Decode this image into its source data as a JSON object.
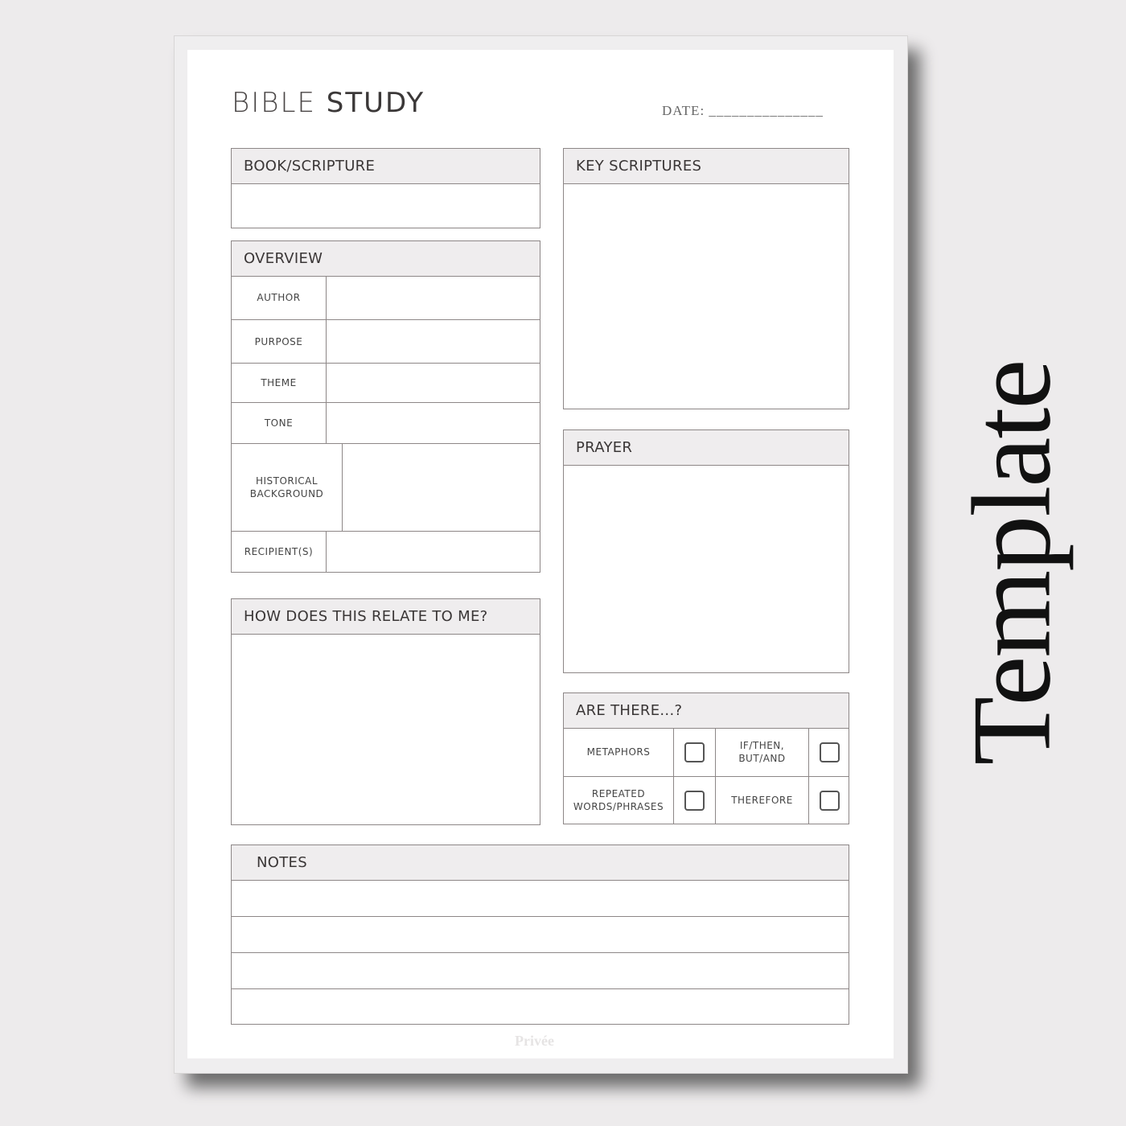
{
  "header": {
    "title_light": "BIBLE",
    "title_bold": "STUDY",
    "date_label": "DATE: _______________"
  },
  "book_scripture": {
    "title": "BOOK/SCRIPTURE"
  },
  "overview": {
    "title": "OVERVIEW",
    "rows": [
      "AUTHOR",
      "PURPOSE",
      "THEME",
      "TONE",
      "HISTORICAL BACKGROUND",
      "RECIPIENT(S)"
    ]
  },
  "relate": {
    "title": "HOW DOES THIS RELATE TO ME?"
  },
  "key_scriptures": {
    "title": "KEY SCRIPTURES"
  },
  "prayer": {
    "title": "PRAYER"
  },
  "are_there": {
    "title": "ARE THERE...?",
    "items": [
      {
        "label": "METAPHORS",
        "checked": false
      },
      {
        "label": "IF/THEN, BUT/AND",
        "checked": false
      },
      {
        "label": "REPEATED WORDS/PHRASES",
        "checked": false
      },
      {
        "label": "THEREFORE",
        "checked": false
      }
    ]
  },
  "notes": {
    "title": "NOTES",
    "line_count": 4
  },
  "watermark": "Privée",
  "side_label": "Template",
  "colors": {
    "background": "#edebec",
    "header_fill": "#efedee",
    "border": "#8d8787"
  }
}
